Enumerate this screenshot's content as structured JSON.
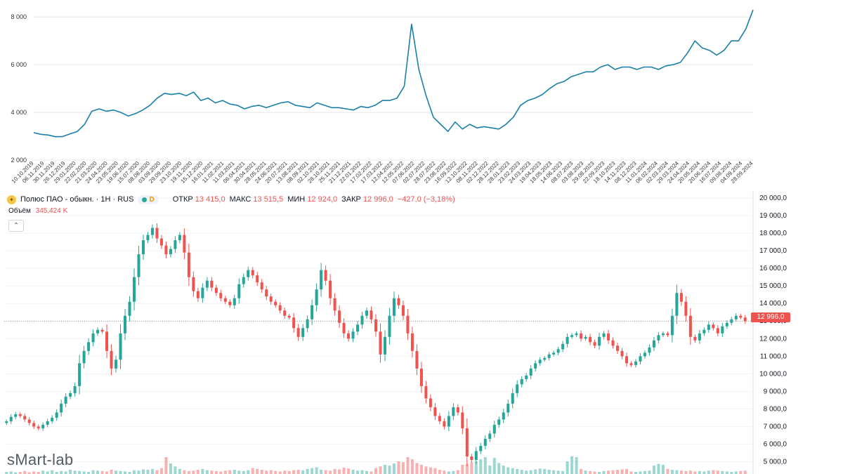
{
  "chart_data": [
    {
      "type": "line",
      "color": "#1a7fa8",
      "ylim": [
        2000,
        8300
      ],
      "y_ticks": [
        "2 000",
        "4 000",
        "6 000",
        "8 000"
      ],
      "y_tick_values": [
        2000,
        4000,
        6000,
        8000
      ],
      "grid": true,
      "x_tick_labels": [
        "10.10.2019",
        "06.11.2019",
        "30.11.2019",
        "26.12.2019",
        "29.01.2020",
        "22.02.2020",
        "21.03.2020",
        "24.04.2020",
        "23.05.2020",
        "19.06.2020",
        "15.07.2020",
        "08.08.2020",
        "03.09.2020",
        "29.09.2020",
        "23.10.2020",
        "19.11.2020",
        "15.12.2020",
        "16.01.2021",
        "11.02.2021",
        "11.03.2021",
        "06.04.2021",
        "30.04.2021",
        "28.05.2021",
        "24.06.2021",
        "20.07.2021",
        "13.08.2021",
        "08.09.2021",
        "02.10.2021",
        "28.10.2021",
        "25.11.2021",
        "21.12.2021",
        "22.01.2022",
        "17.02.2022",
        "17.03.2022",
        "12.04.2022",
        "12.05.2022",
        "07.06.2022",
        "02.07.2022",
        "28.07.2022",
        "23.08.2022",
        "16.09.2022",
        "12.10.2022",
        "08.11.2022",
        "02.12.2022",
        "28.12.2022",
        "28.01.2023",
        "23.02.2023",
        "24.03.2023",
        "19.04.2023",
        "18.05.2023",
        "14.06.2023",
        "08.07.2023",
        "03.08.2023",
        "29.08.2023",
        "22.09.2023",
        "18.10.2023",
        "14.11.2023",
        "08.12.2023",
        "11.01.2024",
        "06.02.2024",
        "02.03.2024",
        "29.03.2024",
        "24.04.2024",
        "20.05.2024",
        "20.06.2024",
        "16.07.2024",
        "09.08.2024",
        "04.09.2024",
        "28.09.2024"
      ],
      "y": [
        3150,
        3080,
        3050,
        2980,
        2990,
        3100,
        3200,
        3500,
        4050,
        4150,
        4050,
        4100,
        4000,
        3850,
        3950,
        4100,
        4300,
        4600,
        4800,
        4750,
        4800,
        4700,
        4850,
        4500,
        4600,
        4400,
        4500,
        4350,
        4300,
        4150,
        4250,
        4300,
        4200,
        4300,
        4400,
        4450,
        4300,
        4250,
        4200,
        4400,
        4300,
        4200,
        4200,
        4150,
        4100,
        4250,
        4200,
        4300,
        4500,
        4500,
        4600,
        5100,
        7700,
        5800,
        4700,
        3800,
        3500,
        3200,
        3600,
        3300,
        3500,
        3350,
        3400,
        3350,
        3300,
        3500,
        3800,
        4300,
        4500,
        4600,
        4750,
        5000,
        5200,
        5300,
        5500,
        5600,
        5700,
        5700,
        5900,
        6000,
        5800,
        5900,
        5900,
        5800,
        5900,
        5900,
        5800,
        5950,
        6000,
        6100,
        6500,
        7000,
        6700,
        6600,
        6400,
        6600,
        7000,
        7000,
        7500,
        8300
      ]
    },
    {
      "type": "candlestick",
      "title": "Полюс ПАО - обыкн. · 1H · RUS",
      "ylim": [
        4300,
        20400
      ],
      "y_ticks": [
        "5 000,0",
        "6 000,0",
        "7 000,0",
        "8 000,0",
        "9 000,0",
        "10 000,0",
        "11 000,0",
        "12 000,0",
        "13 000,0",
        "14 000,0",
        "15 000,0",
        "16 000,0",
        "17 000,0",
        "18 000,0",
        "19 000,0",
        "20 000,0"
      ],
      "y_tick_values": [
        5000,
        6000,
        7000,
        8000,
        9000,
        10000,
        11000,
        12000,
        13000,
        14000,
        15000,
        16000,
        17000,
        18000,
        19000,
        20000
      ],
      "last_price_tag": "12 996,0",
      "last_price": 12996,
      "up_color": "#26a69a",
      "down_color": "#ef5350",
      "close": [
        7300,
        7550,
        7700,
        7600,
        7400,
        7200,
        7000,
        6900,
        7100,
        7300,
        7500,
        7800,
        8300,
        8700,
        8900,
        9300,
        10600,
        11300,
        11800,
        12300,
        12500,
        12400,
        11300,
        10300,
        10800,
        12300,
        13300,
        14100,
        15500,
        16800,
        17600,
        17900,
        18300,
        17700,
        17300,
        16800,
        17100,
        17600,
        17900,
        16900,
        15500,
        14700,
        14300,
        14900,
        15300,
        14900,
        14600,
        14300,
        14100,
        13900,
        14300,
        15100,
        15500,
        15900,
        15600,
        15200,
        14800,
        14400,
        14100,
        13900,
        13600,
        13300,
        13200,
        12600,
        12100,
        12600,
        13100,
        13900,
        14800,
        15900,
        15300,
        14300,
        13600,
        12900,
        12300,
        12000,
        12400,
        12800,
        13300,
        13600,
        13100,
        12400,
        11100,
        12100,
        13300,
        14300,
        13900,
        13300,
        12300,
        11300,
        10300,
        9300,
        8600,
        8100,
        7600,
        7300,
        7000,
        7600,
        8100,
        7800,
        6900,
        5300,
        5100,
        5600,
        5900,
        6300,
        6600,
        7100,
        7400,
        7800,
        8300,
        8900,
        9400,
        9700,
        9900,
        10300,
        10600,
        10800,
        10900,
        11100,
        11200,
        11400,
        11700,
        12100,
        12200,
        12300,
        12000,
        12100,
        11800,
        11600,
        12100,
        12300,
        11900,
        11600,
        11300,
        11000,
        10600,
        10500,
        10700,
        11000,
        11200,
        11500,
        11900,
        12200,
        12300,
        12200,
        13300,
        14600,
        14100,
        13300,
        12100,
        11900,
        12300,
        12500,
        12800,
        12600,
        12300,
        12700,
        12900,
        13100,
        13300,
        13200,
        13000
      ],
      "volume_scale_max": 100,
      "volume": [
        5,
        6,
        4,
        5,
        7,
        4,
        6,
        5,
        8,
        6,
        9,
        5,
        7,
        6,
        10,
        8,
        7,
        6,
        5,
        9,
        8,
        7,
        6,
        10,
        8,
        7,
        6,
        5,
        9,
        8,
        11,
        10,
        12,
        9,
        14,
        40,
        25,
        18,
        12,
        9,
        7,
        8,
        10,
        12,
        9,
        8,
        7,
        6,
        8,
        9,
        10,
        8,
        7,
        9,
        14,
        12,
        10,
        8,
        9,
        7,
        6,
        8,
        7,
        9,
        10,
        9,
        12,
        14,
        16,
        10,
        9,
        8,
        12,
        11,
        15,
        13,
        10,
        8,
        9,
        7,
        6,
        14,
        18,
        22,
        20,
        25,
        30,
        28,
        40,
        35,
        26,
        22,
        18,
        16,
        14,
        10,
        8,
        6,
        7,
        9,
        22,
        24,
        28,
        30,
        35,
        40,
        20,
        38,
        26,
        20,
        16,
        14,
        12,
        10,
        8,
        9,
        11,
        13,
        12,
        10,
        9,
        8,
        7,
        30,
        42,
        40,
        12,
        8,
        7,
        6,
        5,
        7,
        8,
        9,
        10,
        11,
        12,
        6,
        5,
        6,
        7,
        8,
        20,
        24,
        22,
        12,
        10,
        9,
        8,
        7,
        8,
        6,
        7,
        6,
        8,
        9,
        8,
        7,
        6,
        5,
        6,
        7,
        8
      ]
    }
  ],
  "header": {
    "instrument": "Полюс ПАО - обыкн. · 1H · RUS",
    "pill_letter": "D",
    "open_label": "ОТКР",
    "open_value": "13 415,0",
    "high_label": "МАКС",
    "high_value": "13 515,5",
    "low_label": "МИН",
    "low_value": "12 924,0",
    "close_label": "ЗАКР",
    "close_value": "12 996,0",
    "change_value": "−427,0 (−3,18%)",
    "volume_label": "Объём",
    "volume_value": "345,424 K",
    "collapse_glyph": "⌃"
  },
  "watermark": "sMart-lab",
  "logo_icon": "gold-bar-logo-icon",
  "colors": {
    "line": "#1a7fa8",
    "up": "#26a69a",
    "down": "#ef5350",
    "grid": "#e6e6e6"
  }
}
